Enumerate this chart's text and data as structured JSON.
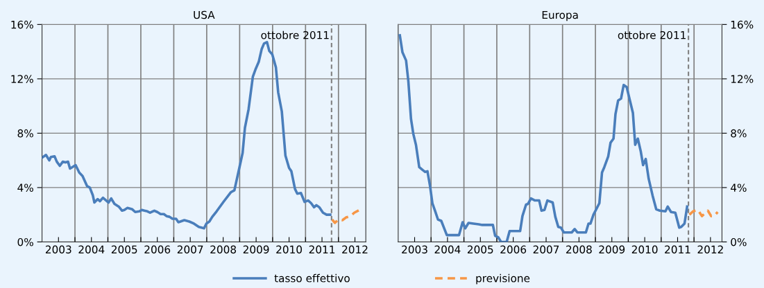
{
  "chart_data": [
    {
      "type": "line",
      "title": "USA",
      "legend": "bottom",
      "grid": true,
      "xlim": [
        2003.0,
        2012.83
      ],
      "ylim": [
        0,
        16
      ],
      "xticks": [
        {
          "value": 2003.5,
          "label": "2003"
        },
        {
          "value": 2004,
          "label": null
        },
        {
          "value": 2004.5,
          "label": "2004"
        },
        {
          "value": 2005,
          "label": null
        },
        {
          "value": 2005.5,
          "label": "2005"
        },
        {
          "value": 2006,
          "label": null
        },
        {
          "value": 2006.5,
          "label": "2006"
        },
        {
          "value": 2007,
          "label": null
        },
        {
          "value": 2007.5,
          "label": "2007"
        },
        {
          "value": 2008,
          "label": null
        },
        {
          "value": 2008.5,
          "label": "2008"
        },
        {
          "value": 2009,
          "label": null
        },
        {
          "value": 2009.5,
          "label": "2009"
        },
        {
          "value": 2010,
          "label": null
        },
        {
          "value": 2010.5,
          "label": "2010"
        },
        {
          "value": 2011,
          "label": null
        },
        {
          "value": 2011.5,
          "label": "2011"
        },
        {
          "value": 2012,
          "label": null
        },
        {
          "value": 2012.5,
          "label": "2012"
        }
      ],
      "yticks": [
        {
          "value": 0,
          "label": "0%"
        },
        {
          "value": 4,
          "label": "4%"
        },
        {
          "value": 8,
          "label": "8%"
        },
        {
          "value": 12,
          "label": "12%"
        },
        {
          "value": 16,
          "label": "16%"
        }
      ],
      "ref_lines": [
        {
          "axis": "x",
          "value": 2011.79,
          "label": "ottobre 2011",
          "color": "#7f7f7f",
          "line_style": "dashed"
        }
      ],
      "series": [
        {
          "name": "tasso effettivo",
          "color": "#4a7ebb",
          "line_style": "solid",
          "x": [
            2003.0,
            2003.12,
            2003.22,
            2003.27,
            2003.38,
            2003.45,
            2003.54,
            2003.63,
            2003.71,
            2003.79,
            2003.85,
            2004.02,
            2004.13,
            2004.23,
            2004.37,
            2004.45,
            2004.54,
            2004.59,
            2004.69,
            2004.76,
            2004.85,
            2005.02,
            2005.1,
            2005.2,
            2005.33,
            2005.43,
            2005.5,
            2005.59,
            2005.74,
            2005.83,
            2005.95,
            2006.03,
            2006.11,
            2006.2,
            2006.28,
            2006.41,
            2006.5,
            2006.6,
            2006.7,
            2006.78,
            2006.87,
            2006.96,
            2007.07,
            2007.14,
            2007.32,
            2007.47,
            2007.61,
            2007.76,
            2007.92,
            2007.99,
            2008.08,
            2008.17,
            2008.3,
            2008.51,
            2008.73,
            2008.84,
            2009.0,
            2009.09,
            2009.16,
            2009.27,
            2009.4,
            2009.49,
            2009.58,
            2009.67,
            2009.74,
            2009.83,
            2009.9,
            2009.99,
            2010.1,
            2010.17,
            2010.28,
            2010.39,
            2010.5,
            2010.57,
            2010.68,
            2010.75,
            2010.86,
            2010.97,
            2011.08,
            2011.17,
            2011.26,
            2011.33,
            2011.42,
            2011.53,
            2011.64,
            2011.75
          ],
          "values": [
            6.2,
            6.4,
            6.0,
            6.25,
            6.3,
            5.9,
            5.6,
            5.9,
            5.85,
            5.9,
            5.4,
            5.65,
            5.1,
            4.85,
            4.1,
            4.0,
            3.45,
            2.9,
            3.15,
            3.0,
            3.25,
            2.9,
            3.2,
            2.8,
            2.6,
            2.3,
            2.35,
            2.5,
            2.4,
            2.2,
            2.25,
            2.35,
            2.3,
            2.25,
            2.15,
            2.3,
            2.2,
            2.05,
            2.05,
            1.9,
            1.85,
            1.7,
            1.7,
            1.45,
            1.6,
            1.5,
            1.35,
            1.1,
            1.0,
            1.35,
            1.5,
            1.85,
            2.25,
            2.95,
            3.65,
            3.8,
            5.55,
            6.55,
            8.4,
            9.75,
            12.15,
            12.75,
            13.25,
            14.2,
            14.6,
            14.7,
            14.05,
            13.8,
            12.85,
            11.0,
            9.6,
            6.35,
            5.45,
            5.2,
            3.9,
            3.55,
            3.6,
            2.95,
            3.05,
            2.85,
            2.55,
            2.7,
            2.55,
            2.15,
            2.0,
            2.0
          ]
        },
        {
          "name": "previsione",
          "color": "#f79646",
          "line_style": "dashed",
          "x": [
            2011.81,
            2011.89,
            2012.0,
            2012.12,
            2012.23,
            2012.37,
            2012.48,
            2012.68
          ],
          "values": [
            1.65,
            1.4,
            1.65,
            1.6,
            1.8,
            1.9,
            2.15,
            2.4
          ]
        }
      ]
    },
    {
      "type": "line",
      "title": "Europa",
      "grid": true,
      "xlim": [
        2003.0,
        2012.85
      ],
      "ylim": [
        0,
        16
      ],
      "xticks": [
        {
          "value": 2003.5,
          "label": "2003"
        },
        {
          "value": 2004,
          "label": null
        },
        {
          "value": 2004.5,
          "label": "2004"
        },
        {
          "value": 2005,
          "label": null
        },
        {
          "value": 2005.5,
          "label": "2005"
        },
        {
          "value": 2006,
          "label": null
        },
        {
          "value": 2006.5,
          "label": "2006"
        },
        {
          "value": 2007,
          "label": null
        },
        {
          "value": 2007.5,
          "label": "2007"
        },
        {
          "value": 2008,
          "label": null
        },
        {
          "value": 2008.5,
          "label": "2008"
        },
        {
          "value": 2009,
          "label": null
        },
        {
          "value": 2009.5,
          "label": "2009"
        },
        {
          "value": 2010,
          "label": null
        },
        {
          "value": 2010.5,
          "label": "2010"
        },
        {
          "value": 2011,
          "label": null
        },
        {
          "value": 2011.5,
          "label": "2011"
        },
        {
          "value": 2012,
          "label": null
        },
        {
          "value": 2012.5,
          "label": "2012"
        }
      ],
      "yticks": [
        {
          "value": 0,
          "label": "0%"
        },
        {
          "value": 4,
          "label": "4%"
        },
        {
          "value": 8,
          "label": "8%"
        },
        {
          "value": 12,
          "label": "12%"
        },
        {
          "value": 16,
          "label": "16%"
        }
      ],
      "ref_lines": [
        {
          "axis": "x",
          "value": 2011.83,
          "label": "ottobre 2011",
          "color": "#7f7f7f",
          "line_style": "dashed"
        }
      ],
      "series": [
        {
          "color": "#4a7ebb",
          "line_style": "solid",
          "x": [
            2003.05,
            2003.13,
            2003.24,
            2003.31,
            2003.39,
            2003.46,
            2003.54,
            2003.64,
            2003.74,
            2003.82,
            2003.89,
            2003.97,
            2004.04,
            2004.12,
            2004.21,
            2004.31,
            2004.4,
            2004.48,
            2004.85,
            2004.96,
            2005.04,
            2005.14,
            2005.29,
            2005.45,
            2005.56,
            2005.88,
            2005.95,
            2006.04,
            2006.13,
            2006.3,
            2006.39,
            2006.71,
            2006.78,
            2006.89,
            2006.95,
            2007.04,
            2007.16,
            2007.29,
            2007.36,
            2007.45,
            2007.54,
            2007.7,
            2007.78,
            2007.87,
            2007.95,
            2008.04,
            2008.28,
            2008.37,
            2008.45,
            2008.71,
            2008.79,
            2008.85,
            2008.94,
            2009.12,
            2009.2,
            2009.27,
            2009.39,
            2009.46,
            2009.55,
            2009.61,
            2009.69,
            2009.78,
            2009.86,
            2009.95,
            2010.02,
            2010.14,
            2010.21,
            2010.29,
            2010.38,
            2010.45,
            2010.53,
            2010.62,
            2010.74,
            2010.85,
            2010.96,
            2011.13,
            2011.2,
            2011.3,
            2011.43,
            2011.55,
            2011.61,
            2011.71,
            2011.79
          ],
          "values": [
            15.2,
            13.95,
            13.35,
            11.8,
            9.05,
            7.95,
            7.15,
            5.5,
            5.3,
            5.15,
            5.2,
            4.1,
            2.85,
            2.3,
            1.65,
            1.55,
            1.0,
            0.5,
            0.5,
            1.45,
            1.0,
            1.4,
            1.35,
            1.3,
            1.25,
            1.25,
            0.45,
            0.35,
            0.0,
            0.0,
            0.8,
            0.8,
            1.9,
            2.75,
            2.8,
            3.2,
            3.05,
            3.05,
            2.3,
            2.35,
            3.05,
            2.9,
            1.85,
            1.1,
            1.05,
            0.7,
            0.7,
            0.95,
            0.7,
            0.7,
            1.35,
            1.35,
            2.0,
            2.85,
            5.1,
            5.5,
            6.3,
            7.3,
            7.6,
            9.4,
            10.4,
            10.55,
            11.55,
            11.4,
            10.7,
            9.5,
            7.15,
            7.6,
            6.65,
            5.65,
            6.1,
            4.65,
            3.4,
            2.4,
            2.3,
            2.25,
            2.6,
            2.2,
            2.15,
            1.05,
            1.1,
            1.35,
            2.6
          ]
        },
        {
          "color": "#f79646",
          "line_style": "dashed",
          "x": [
            2011.86,
            2011.97,
            2012.12,
            2012.24,
            2012.42,
            2012.52,
            2012.61,
            2012.72
          ],
          "values": [
            2.0,
            2.25,
            2.35,
            1.9,
            2.3,
            1.9,
            1.9,
            2.2
          ]
        }
      ]
    }
  ]
}
